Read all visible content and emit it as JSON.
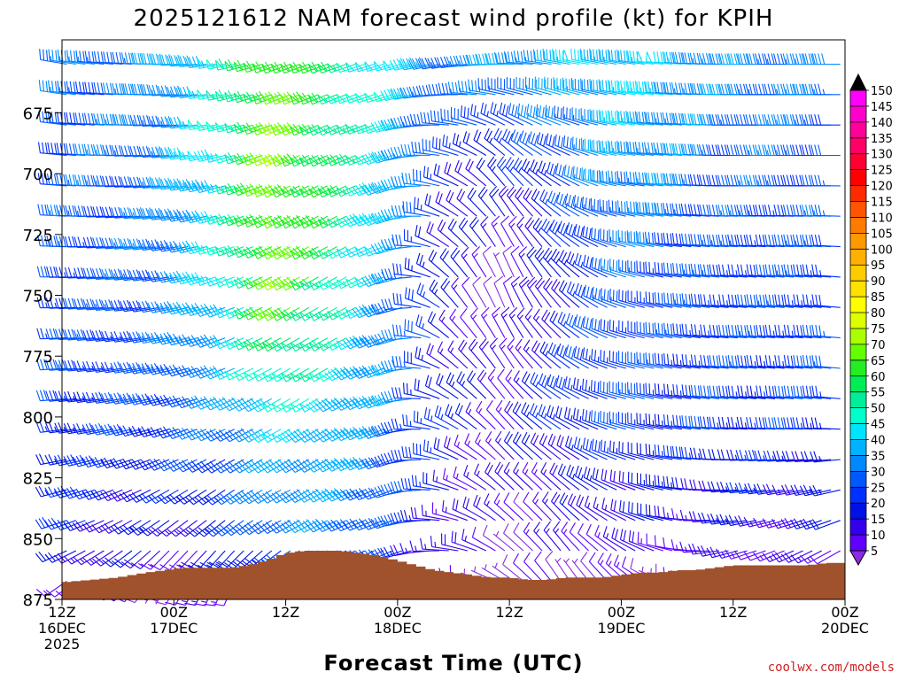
{
  "chart_data": {
    "type": "wind_barb_profile",
    "title": "2025121612 NAM forecast wind profile (kt) for KPIH",
    "xlabel": "Forecast Time (UTC)",
    "ylabel": "",
    "credit": "coolwx.com/models",
    "y_axis": {
      "range": [
        645,
        875
      ],
      "ticks": [
        675,
        700,
        725,
        750,
        775,
        800,
        825,
        850,
        875
      ],
      "levels_min": 655,
      "levels_step": 12.5,
      "levels_count": 18
    },
    "x_axis": {
      "range_hours": [
        0,
        84
      ],
      "ticks": [
        {
          "hour": 0,
          "line1": "12Z",
          "line2": "16DEC",
          "line3": "2025"
        },
        {
          "hour": 12,
          "line1": "00Z",
          "line2": "17DEC",
          "line3": ""
        },
        {
          "hour": 24,
          "line1": "12Z",
          "line2": "",
          "line3": ""
        },
        {
          "hour": 36,
          "line1": "00Z",
          "line2": "18DEC",
          "line3": ""
        },
        {
          "hour": 48,
          "line1": "12Z",
          "line2": "",
          "line3": ""
        },
        {
          "hour": 60,
          "line1": "00Z",
          "line2": "19DEC",
          "line3": ""
        },
        {
          "hour": 72,
          "line1": "12Z",
          "line2": "",
          "line3": ""
        },
        {
          "hour": 84,
          "line1": "00Z",
          "line2": "20DEC",
          "line3": ""
        }
      ],
      "barb_step_hours": 1
    },
    "terrain": {
      "color": "#a0522d",
      "hours": [
        0,
        6,
        9,
        11,
        13,
        15,
        18,
        20,
        22,
        24,
        26,
        28,
        30,
        32,
        34,
        36,
        38,
        40,
        42,
        44,
        46,
        48,
        50,
        52,
        54,
        56,
        58,
        60,
        62,
        64,
        66,
        68,
        70,
        72,
        74,
        76,
        78,
        80,
        82,
        84
      ],
      "pressure": [
        868,
        866,
        864,
        863,
        862,
        862,
        862,
        861,
        859,
        856,
        855,
        855,
        855,
        856,
        857,
        859,
        861,
        863,
        864,
        865,
        866,
        866,
        867,
        867,
        866,
        866,
        866,
        865,
        864,
        864,
        863,
        863,
        862,
        861,
        861,
        861,
        861,
        861,
        860,
        860
      ]
    },
    "wind_keys": {
      "hours": [
        0,
        6,
        12,
        18,
        24,
        30,
        36,
        42,
        48,
        54,
        60,
        66,
        72,
        78,
        84
      ],
      "pressures": [
        655,
        700,
        750,
        800,
        850,
        875
      ],
      "speed_kt": [
        [
          32,
          34,
          38,
          50,
          72,
          60,
          48,
          36,
          38,
          42,
          46,
          44,
          38,
          36,
          36
        ],
        [
          32,
          32,
          36,
          50,
          76,
          62,
          46,
          24,
          22,
          30,
          40,
          38,
          32,
          32,
          32
        ],
        [
          30,
          30,
          34,
          46,
          74,
          58,
          40,
          18,
          8,
          22,
          32,
          30,
          30,
          30,
          30
        ],
        [
          28,
          28,
          30,
          36,
          46,
          46,
          38,
          22,
          16,
          26,
          30,
          28,
          28,
          28,
          28
        ],
        [
          24,
          20,
          16,
          22,
          34,
          36,
          30,
          18,
          12,
          14,
          18,
          16,
          18,
          16,
          16
        ],
        [
          14,
          10,
          8,
          8,
          14,
          18,
          14,
          8,
          6,
          6,
          8,
          8,
          8,
          8,
          8
        ]
      ],
      "direction_deg": [
        [
          280,
          275,
          270,
          260,
          250,
          250,
          255,
          260,
          270,
          280,
          280,
          275,
          270,
          270,
          270
        ],
        [
          275,
          270,
          265,
          255,
          245,
          245,
          250,
          290,
          320,
          300,
          280,
          275,
          270,
          270,
          270
        ],
        [
          270,
          265,
          260,
          250,
          240,
          240,
          250,
          320,
          340,
          320,
          290,
          280,
          275,
          275,
          275
        ],
        [
          265,
          260,
          255,
          245,
          240,
          240,
          250,
          300,
          320,
          300,
          285,
          280,
          275,
          275,
          275
        ],
        [
          250,
          240,
          230,
          230,
          240,
          245,
          250,
          280,
          310,
          320,
          300,
          280,
          260,
          250,
          245
        ],
        [
          230,
          220,
          200,
          190,
          210,
          230,
          240,
          260,
          300,
          330,
          320,
          290,
          240,
          230,
          220
        ]
      ]
    },
    "colorbar": {
      "unit": "kt",
      "labels": [
        "150",
        "145",
        "140",
        "135",
        "130",
        "125",
        "120",
        "115",
        "110",
        "105",
        "100",
        "95",
        "90",
        "85",
        "80",
        "75",
        "70",
        "65",
        "60",
        "55",
        "50",
        "45",
        "40",
        "35",
        "30",
        "25",
        "20",
        "15",
        "10",
        "5"
      ],
      "colors": [
        "#ff00ff",
        "#ff00cc",
        "#ff0099",
        "#ff0066",
        "#ff0033",
        "#ff0000",
        "#ff2a00",
        "#ff5500",
        "#ff7a00",
        "#ff9900",
        "#ffb000",
        "#ffcc00",
        "#ffe100",
        "#ffff00",
        "#ddff00",
        "#aaff00",
        "#66ff00",
        "#22ee22",
        "#00ee55",
        "#00ee99",
        "#00ffcc",
        "#00e5ff",
        "#00b2ff",
        "#0088ff",
        "#0059ff",
        "#0030ff",
        "#0010e6",
        "#3300ee",
        "#6000ff",
        "#8a2be2"
      ]
    }
  }
}
